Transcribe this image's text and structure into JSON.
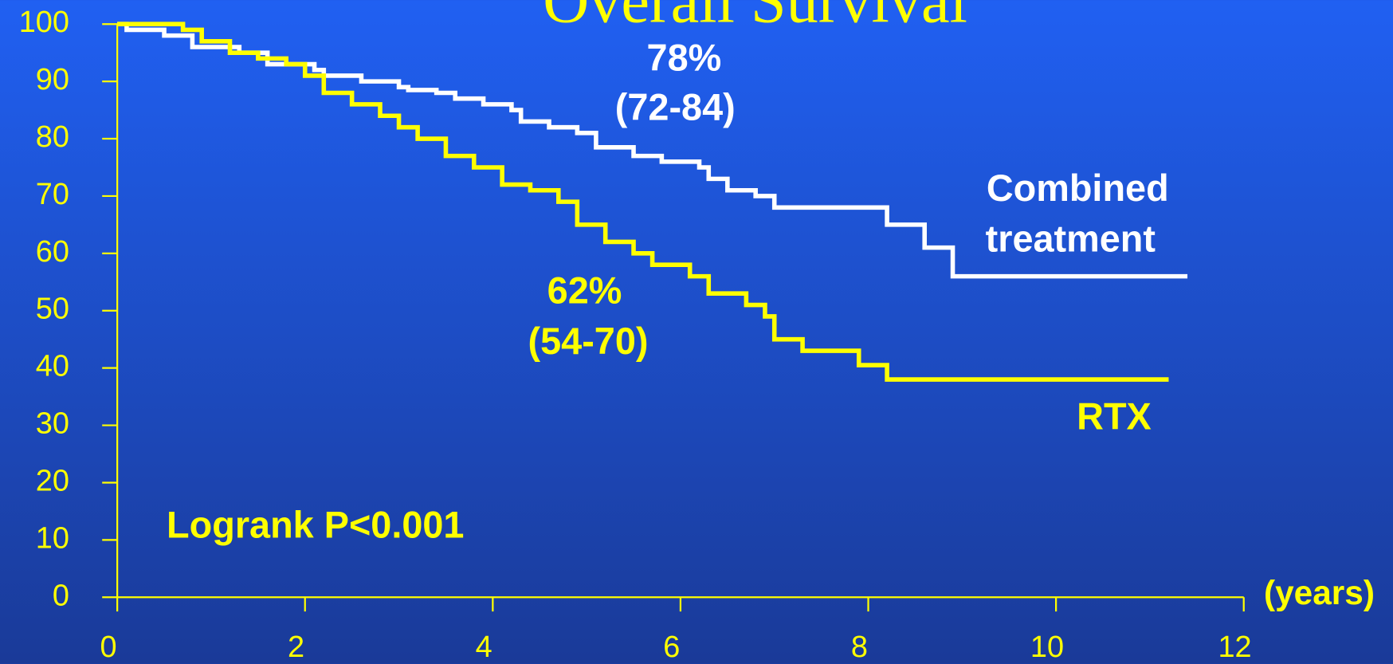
{
  "chart_data": {
    "type": "line",
    "step": true,
    "title": "Overall Survival",
    "xlabel": "(years)",
    "xlim": [
      0,
      12
    ],
    "xticks": [
      0,
      2,
      4,
      6,
      8,
      10,
      12
    ],
    "ylim": [
      0,
      100
    ],
    "yticks": [
      0,
      10,
      20,
      30,
      40,
      50,
      60,
      70,
      80,
      90,
      100
    ],
    "axis_color": "#ffff00",
    "series": [
      {
        "name": "Combined treatment",
        "color": "#ffffff",
        "x": [
          0,
          0.1,
          0.5,
          0.8,
          1.3,
          1.6,
          2.1,
          2.2,
          2.6,
          3.0,
          3.1,
          3.4,
          3.6,
          3.9,
          4.2,
          4.3,
          4.6,
          4.9,
          5.1,
          5.5,
          5.8,
          6.2,
          6.3,
          6.5,
          6.8,
          7.0,
          8.2,
          8.6,
          8.9,
          11.4
        ],
        "values": [
          100,
          99,
          98,
          96,
          95,
          93,
          92,
          91,
          90,
          89,
          88.5,
          88,
          87,
          86,
          85,
          83,
          82,
          81,
          78.5,
          77,
          76,
          75,
          73,
          71,
          70,
          68,
          65,
          61,
          56,
          56
        ]
      },
      {
        "name": "RTX",
        "color": "#ffff00",
        "x": [
          0,
          0.7,
          0.9,
          1.2,
          1.5,
          1.8,
          2.0,
          2.2,
          2.5,
          2.8,
          3.0,
          3.2,
          3.5,
          3.8,
          4.1,
          4.4,
          4.7,
          4.9,
          5.2,
          5.5,
          5.7,
          6.1,
          6.3,
          6.7,
          6.9,
          7.0,
          7.3,
          7.9,
          8.2,
          11.2
        ],
        "values": [
          100,
          99,
          97,
          95,
          94,
          93,
          91,
          88,
          86,
          84,
          82,
          80,
          77,
          75,
          72,
          71,
          69,
          65,
          62,
          60,
          58,
          56,
          53,
          51,
          49,
          45,
          43,
          40.5,
          38,
          38
        ]
      }
    ],
    "annotations": [
      {
        "text": "78%",
        "color": "#ffffff"
      },
      {
        "text": "(72-84)",
        "color": "#ffffff"
      },
      {
        "text": "Combined",
        "color": "#ffffff"
      },
      {
        "text": "treatment",
        "color": "#ffffff"
      },
      {
        "text": "62%",
        "color": "#ffff00"
      },
      {
        "text": "(54-70)",
        "color": "#ffff00"
      },
      {
        "text": "RTX",
        "color": "#ffff00"
      },
      {
        "text": "Logrank P<0.001",
        "color": "#ffff00"
      }
    ]
  }
}
